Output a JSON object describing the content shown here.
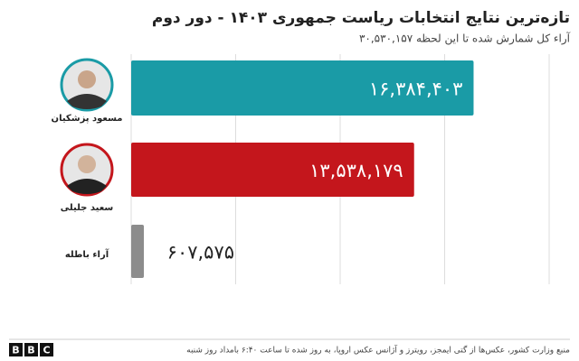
{
  "chart_data": {
    "type": "bar",
    "orientation": "horizontal",
    "title": "تازه‌ترین نتایج انتخابات ریاست جمهوری ۱۴۰۳ - دور دوم",
    "subtitle": "آراء کل شمارش شده تا این لحظه  ۳۰,۵۳۰,۱۵۷",
    "categories": [
      "مسعود پزشکیان",
      "سعید جلیلی",
      "آراء باطله"
    ],
    "values": [
      16384403,
      13538179,
      607575
    ],
    "value_labels": [
      "۱۶,۳۸۴,۴۰۳",
      "۱۳,۵۳۸,۱۷۹",
      "۶۰۷,۵۷۵"
    ],
    "colors": [
      "#1a9ba6",
      "#c4161c",
      "#8c8c8c"
    ],
    "xlim": [
      0,
      20000000
    ],
    "xticks": [
      0,
      5000000,
      10000000,
      15000000,
      20000000
    ],
    "grid": true
  },
  "footer": {
    "source": "منبع وزارت کشور، عکس‌ها از گتی ایمجز، رویترز و آژانس عکس اروپا، به روز شده تا ساعت ۶:۴۰ بامداد روز شنبه",
    "logo": [
      "B",
      "B",
      "C"
    ]
  }
}
